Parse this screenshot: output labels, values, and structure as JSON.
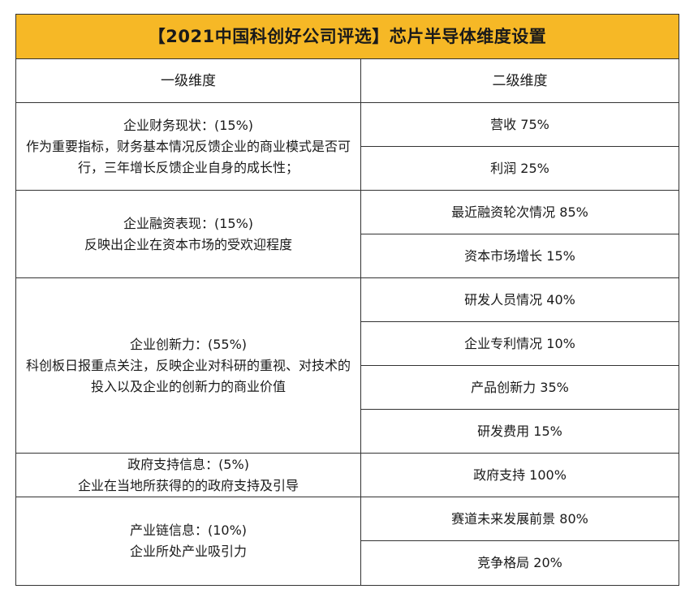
{
  "title": "【2021中国科创好公司评选】芯片半导体维度设置",
  "headers": {
    "level1": "一级维度",
    "level2": "二级维度"
  },
  "groups": [
    {
      "name": "企业财务现状：(15%)",
      "desc": "作为重要指标，财务基本情况反馈企业的商业模式是否可行，三年增长反馈企业自身的成长性；",
      "items": [
        "营收 75%",
        "利润 25%"
      ]
    },
    {
      "name": "企业融资表现：(15%)",
      "desc": "反映出企业在资本市场的受欢迎程度",
      "items": [
        "最近融资轮次情况 85%",
        "资本市场增长 15%"
      ]
    },
    {
      "name": "企业创新力：(55%)",
      "desc": "科创板日报重点关注，反映企业对科研的重视、对技术的投入以及企业的创新力的商业价值",
      "items": [
        "研发人员情况 40%",
        "企业专利情况 10%",
        "产品创新力 35%",
        "研发费用 15%"
      ]
    },
    {
      "name": "政府支持信息：(5%)",
      "desc": "企业在当地所获得的的政府支持及引导",
      "items": [
        "政府支持 100%"
      ]
    },
    {
      "name": "产业链信息：(10%)",
      "desc": "企业所处产业吸引力",
      "items": [
        "赛道未来发展前景 80%",
        "竞争格局 20%"
      ]
    }
  ]
}
